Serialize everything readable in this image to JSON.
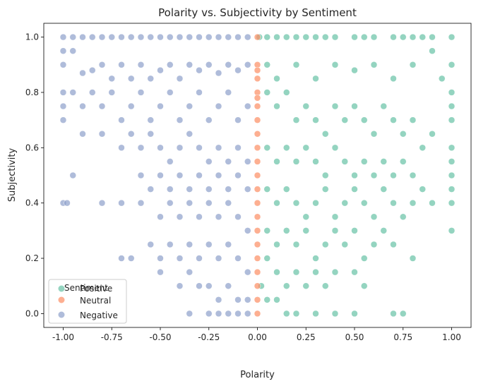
{
  "chart_data": {
    "type": "scatter",
    "title": "Polarity vs. Subjectivity by Sentiment",
    "xlabel": "Polarity",
    "ylabel": "Subjectivity",
    "xlim": [
      -1.1,
      1.1
    ],
    "ylim": [
      -0.05,
      1.05
    ],
    "xticks": [
      "-1.00",
      "-0.75",
      "-0.50",
      "-0.25",
      "0.00",
      "0.25",
      "0.50",
      "0.75",
      "1.00"
    ],
    "xtick_values": [
      -1.0,
      -0.75,
      -0.5,
      -0.25,
      0.0,
      0.25,
      0.5,
      0.75,
      1.0
    ],
    "yticks": [
      "0.0",
      "0.2",
      "0.4",
      "0.6",
      "0.8",
      "1.0"
    ],
    "ytick_values": [
      0.0,
      0.2,
      0.4,
      0.6,
      0.8,
      1.0
    ],
    "grid": false,
    "legend": {
      "title": "Sentiment",
      "position": "lower-left",
      "entries": [
        "Positive",
        "Neutral",
        "Negative"
      ]
    },
    "series": [
      {
        "name": "Positive",
        "color": "#66c2a5",
        "points": [
          [
            0.01,
            1.0
          ],
          [
            0.05,
            1.0
          ],
          [
            0.1,
            1.0
          ],
          [
            0.15,
            1.0
          ],
          [
            0.2,
            1.0
          ],
          [
            0.25,
            1.0
          ],
          [
            0.3,
            1.0
          ],
          [
            0.35,
            1.0
          ],
          [
            0.4,
            1.0
          ],
          [
            0.5,
            1.0
          ],
          [
            0.55,
            1.0
          ],
          [
            0.6,
            1.0
          ],
          [
            0.7,
            1.0
          ],
          [
            0.75,
            1.0
          ],
          [
            0.8,
            1.0
          ],
          [
            0.85,
            1.0
          ],
          [
            0.9,
            1.0
          ],
          [
            1.0,
            1.0
          ],
          [
            0.05,
            0.9
          ],
          [
            0.1,
            0.85
          ],
          [
            0.2,
            0.9
          ],
          [
            0.3,
            0.85
          ],
          [
            0.4,
            0.9
          ],
          [
            0.5,
            0.88
          ],
          [
            0.6,
            0.9
          ],
          [
            0.7,
            0.85
          ],
          [
            0.8,
            0.9
          ],
          [
            0.9,
            0.95
          ],
          [
            1.0,
            0.9
          ],
          [
            0.95,
            0.85
          ],
          [
            1.0,
            0.8
          ],
          [
            1.0,
            0.75
          ],
          [
            1.0,
            0.7
          ],
          [
            1.0,
            0.6
          ],
          [
            1.0,
            0.55
          ],
          [
            1.0,
            0.5
          ],
          [
            1.0,
            0.45
          ],
          [
            1.0,
            0.4
          ],
          [
            1.0,
            0.3
          ],
          [
            0.05,
            0.8
          ],
          [
            0.1,
            0.75
          ],
          [
            0.15,
            0.8
          ],
          [
            0.2,
            0.7
          ],
          [
            0.25,
            0.75
          ],
          [
            0.3,
            0.7
          ],
          [
            0.35,
            0.65
          ],
          [
            0.4,
            0.75
          ],
          [
            0.45,
            0.7
          ],
          [
            0.5,
            0.75
          ],
          [
            0.55,
            0.7
          ],
          [
            0.6,
            0.65
          ],
          [
            0.65,
            0.75
          ],
          [
            0.7,
            0.7
          ],
          [
            0.75,
            0.65
          ],
          [
            0.8,
            0.7
          ],
          [
            0.85,
            0.6
          ],
          [
            0.9,
            0.65
          ],
          [
            0.05,
            0.6
          ],
          [
            0.1,
            0.55
          ],
          [
            0.15,
            0.6
          ],
          [
            0.2,
            0.55
          ],
          [
            0.25,
            0.6
          ],
          [
            0.3,
            0.55
          ],
          [
            0.35,
            0.5
          ],
          [
            0.4,
            0.6
          ],
          [
            0.45,
            0.55
          ],
          [
            0.5,
            0.5
          ],
          [
            0.55,
            0.55
          ],
          [
            0.6,
            0.5
          ],
          [
            0.65,
            0.55
          ],
          [
            0.7,
            0.5
          ],
          [
            0.75,
            0.55
          ],
          [
            0.8,
            0.5
          ],
          [
            0.85,
            0.45
          ],
          [
            0.05,
            0.45
          ],
          [
            0.1,
            0.4
          ],
          [
            0.15,
            0.45
          ],
          [
            0.2,
            0.4
          ],
          [
            0.25,
            0.35
          ],
          [
            0.3,
            0.4
          ],
          [
            0.35,
            0.45
          ],
          [
            0.4,
            0.35
          ],
          [
            0.45,
            0.4
          ],
          [
            0.5,
            0.45
          ],
          [
            0.55,
            0.4
          ],
          [
            0.6,
            0.35
          ],
          [
            0.65,
            0.45
          ],
          [
            0.7,
            0.4
          ],
          [
            0.75,
            0.35
          ],
          [
            0.8,
            0.4
          ],
          [
            0.9,
            0.4
          ],
          [
            0.05,
            0.3
          ],
          [
            0.1,
            0.25
          ],
          [
            0.15,
            0.3
          ],
          [
            0.2,
            0.25
          ],
          [
            0.25,
            0.3
          ],
          [
            0.3,
            0.2
          ],
          [
            0.35,
            0.25
          ],
          [
            0.4,
            0.3
          ],
          [
            0.45,
            0.25
          ],
          [
            0.5,
            0.3
          ],
          [
            0.55,
            0.2
          ],
          [
            0.6,
            0.25
          ],
          [
            0.65,
            0.3
          ],
          [
            0.7,
            0.25
          ],
          [
            0.8,
            0.2
          ],
          [
            0.05,
            0.2
          ],
          [
            0.1,
            0.15
          ],
          [
            0.15,
            0.1
          ],
          [
            0.2,
            0.15
          ],
          [
            0.25,
            0.1
          ],
          [
            0.3,
            0.15
          ],
          [
            0.35,
            0.1
          ],
          [
            0.4,
            0.15
          ],
          [
            0.5,
            0.15
          ],
          [
            0.55,
            0.1
          ],
          [
            0.02,
            0.1
          ],
          [
            0.05,
            0.05
          ],
          [
            0.1,
            0.05
          ],
          [
            0.15,
            0.0
          ],
          [
            0.2,
            0.0
          ],
          [
            0.3,
            0.0
          ],
          [
            0.4,
            0.0
          ],
          [
            0.5,
            0.0
          ],
          [
            0.7,
            0.0
          ],
          [
            0.75,
            0.0
          ]
        ]
      },
      {
        "name": "Neutral",
        "color": "#fc8d62",
        "points": [
          [
            0.0,
            1.0
          ],
          [
            0.0,
            0.9
          ],
          [
            0.0,
            0.88
          ],
          [
            0.0,
            0.85
          ],
          [
            0.0,
            0.8
          ],
          [
            0.0,
            0.78
          ],
          [
            0.0,
            0.75
          ],
          [
            0.0,
            0.7
          ],
          [
            0.0,
            0.65
          ],
          [
            0.0,
            0.6
          ],
          [
            0.0,
            0.55
          ],
          [
            0.0,
            0.5
          ],
          [
            0.0,
            0.45
          ],
          [
            0.0,
            0.4
          ],
          [
            0.0,
            0.35
          ],
          [
            0.0,
            0.3
          ],
          [
            0.0,
            0.25
          ],
          [
            0.0,
            0.2
          ],
          [
            0.0,
            0.15
          ],
          [
            0.0,
            0.1
          ],
          [
            0.0,
            0.05
          ],
          [
            0.0,
            0.0
          ]
        ]
      },
      {
        "name": "Negative",
        "color": "#8da0cb",
        "points": [
          [
            -1.0,
            1.0
          ],
          [
            -0.95,
            1.0
          ],
          [
            -0.9,
            1.0
          ],
          [
            -0.85,
            1.0
          ],
          [
            -0.8,
            1.0
          ],
          [
            -0.75,
            1.0
          ],
          [
            -0.7,
            1.0
          ],
          [
            -0.65,
            1.0
          ],
          [
            -0.6,
            1.0
          ],
          [
            -0.55,
            1.0
          ],
          [
            -0.5,
            1.0
          ],
          [
            -0.45,
            1.0
          ],
          [
            -0.4,
            1.0
          ],
          [
            -0.35,
            1.0
          ],
          [
            -0.3,
            1.0
          ],
          [
            -0.25,
            1.0
          ],
          [
            -0.2,
            1.0
          ],
          [
            -0.15,
            1.0
          ],
          [
            -0.1,
            1.0
          ],
          [
            -0.05,
            1.0
          ],
          [
            -1.0,
            0.95
          ],
          [
            -0.95,
            0.95
          ],
          [
            -1.0,
            0.9
          ],
          [
            -0.9,
            0.87
          ],
          [
            -0.85,
            0.88
          ],
          [
            -0.8,
            0.9
          ],
          [
            -0.75,
            0.85
          ],
          [
            -0.7,
            0.9
          ],
          [
            -0.65,
            0.85
          ],
          [
            -0.6,
            0.9
          ],
          [
            -0.55,
            0.85
          ],
          [
            -0.5,
            0.88
          ],
          [
            -0.45,
            0.9
          ],
          [
            -0.4,
            0.85
          ],
          [
            -0.35,
            0.9
          ],
          [
            -0.3,
            0.88
          ],
          [
            -0.25,
            0.9
          ],
          [
            -0.2,
            0.87
          ],
          [
            -0.15,
            0.9
          ],
          [
            -0.1,
            0.88
          ],
          [
            -0.05,
            0.9
          ],
          [
            -1.0,
            0.8
          ],
          [
            -1.0,
            0.75
          ],
          [
            -0.95,
            0.8
          ],
          [
            -0.9,
            0.75
          ],
          [
            -0.85,
            0.8
          ],
          [
            -0.8,
            0.75
          ],
          [
            -0.75,
            0.8
          ],
          [
            -0.7,
            0.7
          ],
          [
            -0.65,
            0.75
          ],
          [
            -0.6,
            0.8
          ],
          [
            -0.55,
            0.7
          ],
          [
            -0.5,
            0.75
          ],
          [
            -0.45,
            0.8
          ],
          [
            -0.4,
            0.7
          ],
          [
            -0.35,
            0.75
          ],
          [
            -0.3,
            0.8
          ],
          [
            -0.25,
            0.7
          ],
          [
            -0.2,
            0.75
          ],
          [
            -0.15,
            0.8
          ],
          [
            -0.1,
            0.7
          ],
          [
            -0.05,
            0.75
          ],
          [
            -1.0,
            0.7
          ],
          [
            -0.9,
            0.65
          ],
          [
            -0.8,
            0.65
          ],
          [
            -0.7,
            0.6
          ],
          [
            -0.65,
            0.65
          ],
          [
            -0.6,
            0.6
          ],
          [
            -0.55,
            0.65
          ],
          [
            -0.5,
            0.6
          ],
          [
            -0.45,
            0.55
          ],
          [
            -0.4,
            0.6
          ],
          [
            -0.35,
            0.65
          ],
          [
            -0.3,
            0.6
          ],
          [
            -0.25,
            0.55
          ],
          [
            -0.2,
            0.6
          ],
          [
            -0.15,
            0.55
          ],
          [
            -0.1,
            0.6
          ],
          [
            -0.05,
            0.55
          ],
          [
            -0.95,
            0.5
          ],
          [
            -0.6,
            0.5
          ],
          [
            -0.55,
            0.45
          ],
          [
            -0.5,
            0.5
          ],
          [
            -0.45,
            0.45
          ],
          [
            -0.4,
            0.5
          ],
          [
            -0.35,
            0.45
          ],
          [
            -0.3,
            0.5
          ],
          [
            -0.25,
            0.45
          ],
          [
            -0.2,
            0.5
          ],
          [
            -0.15,
            0.45
          ],
          [
            -0.1,
            0.5
          ],
          [
            -0.05,
            0.45
          ],
          [
            -1.0,
            0.4
          ],
          [
            -0.98,
            0.4
          ],
          [
            -0.8,
            0.4
          ],
          [
            -0.7,
            0.4
          ],
          [
            -0.6,
            0.4
          ],
          [
            -0.5,
            0.35
          ],
          [
            -0.45,
            0.4
          ],
          [
            -0.4,
            0.35
          ],
          [
            -0.35,
            0.4
          ],
          [
            -0.3,
            0.35
          ],
          [
            -0.25,
            0.4
          ],
          [
            -0.2,
            0.35
          ],
          [
            -0.15,
            0.4
          ],
          [
            -0.1,
            0.35
          ],
          [
            -0.05,
            0.3
          ],
          [
            -0.7,
            0.2
          ],
          [
            -0.65,
            0.2
          ],
          [
            -0.55,
            0.25
          ],
          [
            -0.5,
            0.2
          ],
          [
            -0.45,
            0.25
          ],
          [
            -0.4,
            0.2
          ],
          [
            -0.35,
            0.25
          ],
          [
            -0.3,
            0.2
          ],
          [
            -0.25,
            0.25
          ],
          [
            -0.2,
            0.2
          ],
          [
            -0.15,
            0.25
          ],
          [
            -0.1,
            0.2
          ],
          [
            -0.05,
            0.15
          ],
          [
            -0.5,
            0.15
          ],
          [
            -0.4,
            0.1
          ],
          [
            -0.35,
            0.15
          ],
          [
            -0.3,
            0.1
          ],
          [
            -0.25,
            0.1
          ],
          [
            -0.2,
            0.05
          ],
          [
            -0.15,
            0.1
          ],
          [
            -0.1,
            0.05
          ],
          [
            -0.05,
            0.05
          ],
          [
            -0.35,
            0.0
          ],
          [
            -0.25,
            0.0
          ],
          [
            -0.2,
            0.0
          ],
          [
            -0.15,
            0.0
          ],
          [
            -0.1,
            0.0
          ],
          [
            -0.05,
            0.0
          ]
        ]
      }
    ]
  }
}
